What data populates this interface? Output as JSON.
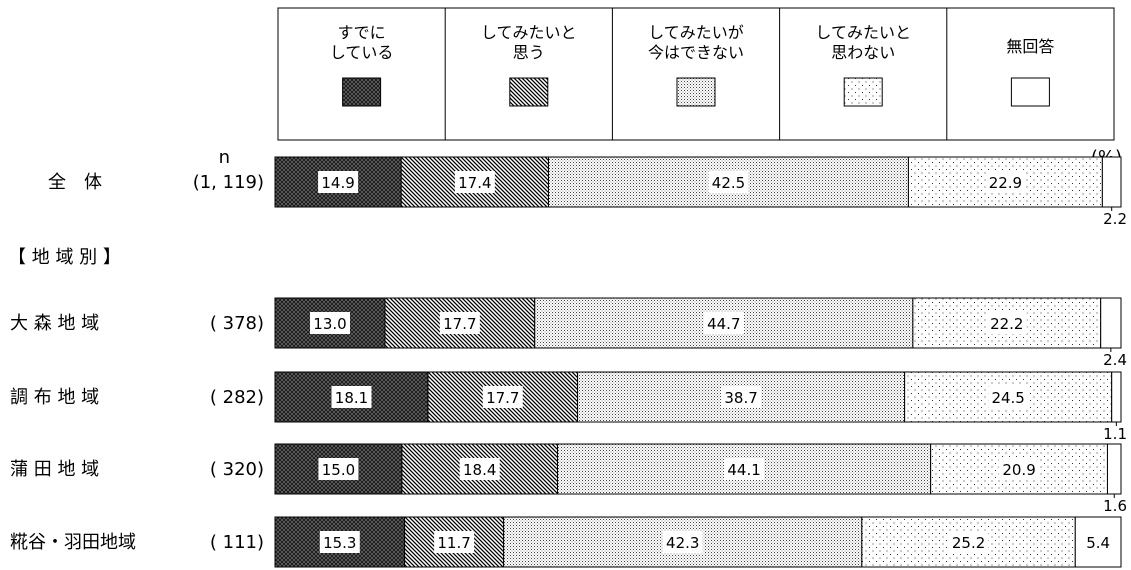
{
  "chart_data": {
    "type": "stacked-bar-horizontal",
    "unit_label": "(%)",
    "n_header": "n",
    "section_label": "【 地 域 別 】",
    "legend": [
      {
        "name_lines": [
          "すでに",
          "している"
        ],
        "pattern": "crosshatch-dark"
      },
      {
        "name_lines": [
          "してみたいと",
          "思う"
        ],
        "pattern": "diagonal"
      },
      {
        "name_lines": [
          "してみたいが",
          "今はできない"
        ],
        "pattern": "dense-dots"
      },
      {
        "name_lines": [
          "してみたいと",
          "思わない"
        ],
        "pattern": "sparse-dots"
      },
      {
        "name_lines": [
          "無回答"
        ],
        "pattern": "blank"
      }
    ],
    "rows": [
      {
        "label": "全　体",
        "n": "(1, 119)",
        "values": [
          14.9,
          17.4,
          42.5,
          22.9,
          2.2
        ]
      },
      {
        "label": "大 森 地 域",
        "n": "( 378)",
        "values": [
          13.0,
          17.7,
          44.7,
          22.2,
          2.4
        ]
      },
      {
        "label": "調 布 地 域",
        "n": "( 282)",
        "values": [
          18.1,
          17.7,
          38.7,
          24.5,
          1.1
        ]
      },
      {
        "label": "蒲 田 地 域",
        "n": "( 320)",
        "values": [
          15.0,
          18.4,
          44.1,
          20.9,
          1.6
        ]
      },
      {
        "label": "糀谷・羽田地域",
        "n": "( 111)",
        "values": [
          15.3,
          11.7,
          42.3,
          25.2,
          5.4
        ]
      }
    ],
    "xlim": [
      0,
      100
    ]
  }
}
